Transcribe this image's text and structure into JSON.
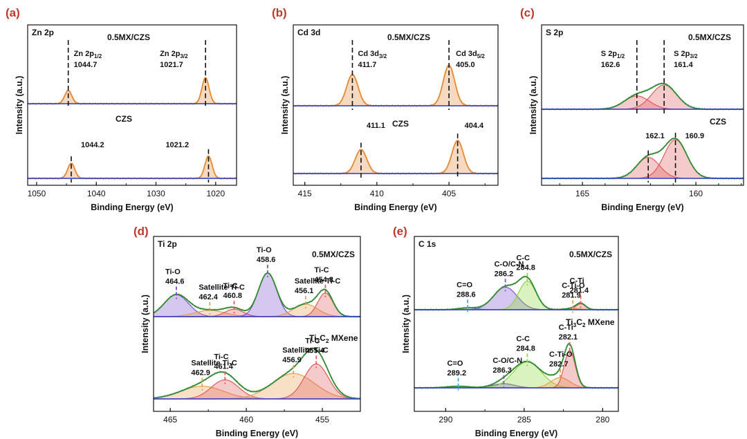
{
  "chart_data": [
    {
      "type": "line",
      "panel_label": "(a)",
      "title": "Zn 2p",
      "xlabel": "Binding Energy (eV)",
      "ylabel": "Intensity (a.u.)",
      "xlim": [
        1051.5,
        1016.5
      ],
      "xticks": [
        "1050",
        "1040",
        "1030",
        "1020"
      ],
      "grid": false,
      "samples": [
        {
          "name": "0.5MX/CZS",
          "peaks": [
            {
              "label": "Zn 2p",
              "sub": "1/2",
              "value": "1044.7",
              "x": 1044.7,
              "height": 0.38,
              "width": 0.6,
              "color": "#e08a3c"
            },
            {
              "label": "Zn 2p",
              "sub": "3/2",
              "value": "1021.7",
              "x": 1021.7,
              "height": 0.75,
              "width": 0.6,
              "color": "#e08a3c"
            }
          ]
        },
        {
          "name": "CZS",
          "peaks": [
            {
              "label": "",
              "sub": "",
              "value": "1044.2",
              "x": 1044.2,
              "height": 0.42,
              "width": 0.6,
              "color": "#e08a3c"
            },
            {
              "label": "",
              "sub": "",
              "value": "1021.2",
              "x": 1021.2,
              "height": 0.62,
              "width": 0.6,
              "color": "#e08a3c"
            }
          ]
        }
      ]
    },
    {
      "type": "line",
      "panel_label": "(b)",
      "title": "Cd 3d",
      "xlabel": "Binding Energy (eV)",
      "ylabel": "Intensity (a.u.)",
      "xlim": [
        415.8,
        401.6
      ],
      "xticks": [
        "415",
        "410",
        "405"
      ],
      "grid": false,
      "samples": [
        {
          "name": "0.5MX/CZS",
          "peaks": [
            {
              "label": "Cd 3d",
              "sub": "3/2",
              "value": "411.7",
              "x": 411.7,
              "height": 0.5,
              "width": 0.4,
              "color": "#e08a3c"
            },
            {
              "label": "Cd 3d",
              "sub": "5/2",
              "value": "405.0",
              "x": 405.0,
              "height": 0.65,
              "width": 0.4,
              "color": "#e08a3c"
            }
          ]
        },
        {
          "name": "CZS",
          "peaks": [
            {
              "label": "",
              "sub": "",
              "value": "411.1",
              "x": 411.1,
              "height": 0.45,
              "width": 0.4,
              "color": "#e08a3c"
            },
            {
              "label": "",
              "sub": "",
              "value": "404.4",
              "x": 404.4,
              "height": 0.62,
              "width": 0.4,
              "color": "#e08a3c"
            }
          ]
        }
      ]
    },
    {
      "type": "line",
      "panel_label": "(c)",
      "title": "S 2p",
      "xlabel": "Binding Energy (eV)",
      "ylabel": "Intensity (a.u.)",
      "xlim": [
        166.8,
        157.9
      ],
      "xticks": [
        "165",
        "160"
      ],
      "grid": false,
      "samples": [
        {
          "name": "0.5MX/CZS",
          "peaks": [
            {
              "label": "S 2p",
              "sub": "1/2",
              "value": "162.6",
              "x": 162.6,
              "height": 0.3,
              "width": 0.55,
              "color": "#e05a5a"
            },
            {
              "label": "S 2p",
              "sub": "3/2",
              "value": "161.4",
              "x": 161.4,
              "height": 0.55,
              "width": 0.55,
              "color": "#e05a5a"
            }
          ]
        },
        {
          "name": "CZS",
          "peaks": [
            {
              "label": "",
              "sub": "",
              "value": "162.1",
              "x": 162.1,
              "height": 0.38,
              "width": 0.5,
              "color": "#e05a5a"
            },
            {
              "label": "",
              "sub": "",
              "value": "160.9",
              "x": 160.9,
              "height": 0.7,
              "width": 0.5,
              "color": "#e05a5a"
            }
          ]
        }
      ]
    },
    {
      "type": "line",
      "panel_label": "(d)",
      "title": "Ti 2p",
      "xlabel": "Binding Energy (eV)",
      "ylabel": "Intensity (a.u.)",
      "xlim": [
        466.1,
        452.5
      ],
      "xticks": [
        "465",
        "460",
        "455"
      ],
      "grid": false,
      "samples": [
        {
          "name": "0.5MX/CZS",
          "peaks": [
            {
              "label": "Ti-O",
              "sub": "",
              "value": "464.6",
              "x": 464.6,
              "height": 0.35,
              "width": 0.8,
              "color": "#7b52cc"
            },
            {
              "label": "Satellite Ti-C",
              "sub": "",
              "value": "462.4",
              "x": 462.4,
              "height": 0.1,
              "width": 1.0,
              "color": "#e8a050"
            },
            {
              "label": "Ti-C",
              "sub": "",
              "value": "460.8",
              "x": 460.8,
              "height": 0.12,
              "width": 0.6,
              "color": "#e05a5a"
            },
            {
              "label": "Ti-O",
              "sub": "",
              "value": "458.6",
              "x": 458.6,
              "height": 0.7,
              "width": 0.6,
              "color": "#7b52cc"
            },
            {
              "label": "Satellite Ti-C",
              "sub": "",
              "value": "456.1",
              "x": 456.1,
              "height": 0.2,
              "width": 0.8,
              "color": "#e8a050"
            },
            {
              "label": "Ti-C",
              "sub": "",
              "value": "454.8",
              "x": 454.8,
              "height": 0.38,
              "width": 0.5,
              "color": "#e05a5a"
            }
          ]
        },
        {
          "name": "Ti3C2 MXene",
          "name_main": "Ti",
          "name_sub1": "3",
          "name_mid": "C",
          "name_sub2": "2",
          "name_tail": " MXene",
          "peaks": [
            {
              "label": "Satellite Ti-C",
              "sub": "",
              "value": "462.9",
              "x": 462.9,
              "height": 0.2,
              "width": 1.4,
              "color": "#e8a050"
            },
            {
              "label": "Ti-C",
              "sub": "",
              "value": "461.4",
              "x": 461.4,
              "height": 0.3,
              "width": 0.9,
              "color": "#e05a5a"
            },
            {
              "label": "Satellite Ti-C",
              "sub": "",
              "value": "456.9",
              "x": 456.9,
              "height": 0.4,
              "width": 1.4,
              "color": "#e8a050"
            },
            {
              "label": "Ti-C",
              "sub": "",
              "value": "455.4",
              "x": 455.4,
              "height": 0.55,
              "width": 0.8,
              "color": "#e05a5a"
            }
          ]
        }
      ]
    },
    {
      "type": "line",
      "panel_label": "(e)",
      "title": "C 1s",
      "xlabel": "Binding Energy (eV)",
      "ylabel": "Intensity (a.u.)",
      "xlim": [
        292,
        279
      ],
      "xticks": [
        "290",
        "285",
        "280"
      ],
      "grid": false,
      "samples": [
        {
          "name": "0.5MX/CZS",
          "peaks": [
            {
              "label": "C=O",
              "sub": "",
              "value": "288.6",
              "x": 288.6,
              "height": 0.03,
              "width": 0.6,
              "color": "#3aaed8"
            },
            {
              "label": "C-O/C-N",
              "sub": "",
              "value": "286.2",
              "x": 286.2,
              "height": 0.38,
              "width": 0.75,
              "color": "#7b52cc"
            },
            {
              "label": "C-C",
              "sub": "",
              "value": "284.8",
              "x": 284.8,
              "height": 0.48,
              "width": 0.55,
              "color": "#8bd63a"
            },
            {
              "label": "C-Ti-O",
              "sub": "",
              "value": "281.9",
              "x": 281.9,
              "height": 0.02,
              "width": 0.5,
              "color": "#e8a050"
            },
            {
              "label": "C-Ti",
              "sub": "",
              "value": "281.4",
              "x": 281.4,
              "height": 0.1,
              "width": 0.3,
              "color": "#e05a5a"
            }
          ]
        },
        {
          "name": "Ti3C2 MXene",
          "name_main": "Ti",
          "name_sub1": "3",
          "name_mid": "C",
          "name_sub2": "2",
          "name_tail": " MXene",
          "peaks": [
            {
              "label": "C=O",
              "sub": "",
              "value": "289.2",
              "x": 289.2,
              "height": 0.03,
              "width": 0.7,
              "color": "#3aaed8"
            },
            {
              "label": "C-O/C-N",
              "sub": "",
              "value": "286.3",
              "x": 286.3,
              "height": 0.08,
              "width": 0.7,
              "color": "#7b52cc"
            },
            {
              "label": "C-C",
              "sub": "",
              "value": "284.8",
              "x": 284.8,
              "height": 0.5,
              "width": 0.9,
              "color": "#8bd63a"
            },
            {
              "label": "C-Ti-O",
              "sub": "",
              "value": "282.7",
              "x": 282.7,
              "height": 0.2,
              "width": 0.6,
              "color": "#e8a050"
            },
            {
              "label": "C-Ti",
              "sub": "",
              "value": "282.1",
              "x": 282.1,
              "height": 0.72,
              "width": 0.35,
              "color": "#e05a5a"
            }
          ]
        }
      ]
    }
  ]
}
